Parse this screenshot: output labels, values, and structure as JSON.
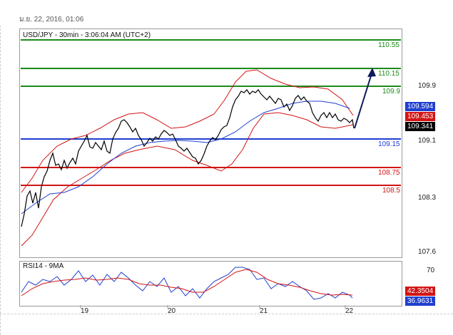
{
  "header": {
    "datetime": "ม.ย. 22, 2016, 01:06"
  },
  "chart_title": "USD/JPY - 30min - 3:06:04 AM (UTC+2)",
  "rsi_title": "RSI14 - 9MA",
  "levels": [
    {
      "value": "110.55",
      "color": "#1a8a1a"
    },
    {
      "value": "110.15",
      "color": "#1a8a1a"
    },
    {
      "value": "109.9",
      "color": "#1a8a1a"
    },
    {
      "value": "109.15",
      "color": "#1f3fcf"
    },
    {
      "value": "108.75",
      "color": "#d21414"
    },
    {
      "value": "108.5",
      "color": "#d21414"
    }
  ],
  "price_axis": [
    "109.9",
    "109.1",
    "108.3",
    "107.6"
  ],
  "price_badges": [
    {
      "value": "109.594",
      "color": "#1f3fcf"
    },
    {
      "value": "109.453",
      "color": "#d21414"
    },
    {
      "value": "109.341",
      "color": "#000000"
    }
  ],
  "rsi_axis": [
    "70"
  ],
  "rsi_badges": [
    {
      "value": "42.3504",
      "color": "#d21414"
    },
    {
      "value": "36.9631",
      "color": "#1f3fcf"
    }
  ],
  "dates": [
    "19",
    "20",
    "21",
    "22"
  ],
  "colors": {
    "up_arrow": "#0b1a5e",
    "candles": "#000000",
    "ma_blue": "#1f3fcf",
    "band_red": "#d21414"
  }
}
